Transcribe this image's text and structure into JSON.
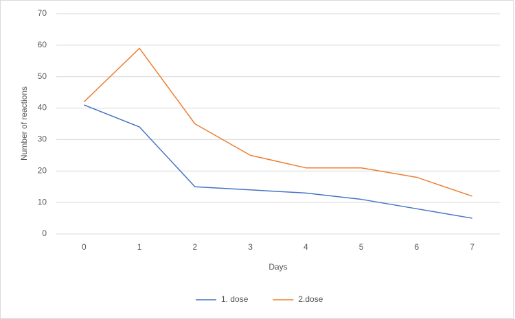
{
  "chart_data": {
    "type": "line",
    "xlabel": "Days",
    "ylabel": "Number  of reactions",
    "categories": [
      "0",
      "1",
      "2",
      "3",
      "4",
      "5",
      "6",
      "7"
    ],
    "series": [
      {
        "name": "1. dose",
        "color": "#4472c4",
        "values": [
          41,
          34,
          15,
          14,
          13,
          11,
          8,
          5
        ]
      },
      {
        "name": "2.dose",
        "color": "#ed7d31",
        "values": [
          42,
          59,
          35,
          25,
          21,
          21,
          18,
          12
        ]
      }
    ],
    "ylim": [
      0,
      70
    ],
    "yticks": [
      0,
      10,
      20,
      30,
      40,
      50,
      60,
      70
    ],
    "grid": true,
    "legend": "bottom"
  }
}
